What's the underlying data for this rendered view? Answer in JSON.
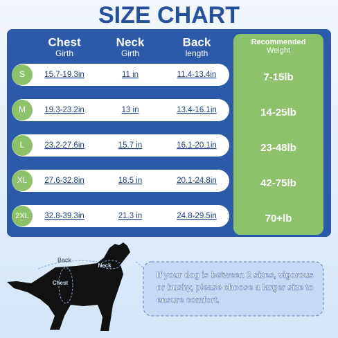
{
  "title": "SIZE CHART",
  "header": {
    "chest": "Chest",
    "chest_sub": "Girth",
    "neck": "Neck",
    "neck_sub": "Girth",
    "back": "Back",
    "back_sub": "length",
    "weight": "Recommended",
    "weight_sub": "Weight"
  },
  "table": {
    "rows": [
      [
        "S",
        "15.7-19.3in",
        "11 in",
        "11.4-13.4in",
        "7-15lb"
      ],
      [
        "M",
        "19.3-23.2in",
        "13 in",
        "13.4-16.1in",
        "14-25lb"
      ],
      [
        "L",
        "23.2-27.6in",
        "15.7 in",
        "16.1-20.1in",
        "23-48lb"
      ],
      [
        "XL",
        "27.6-32.8in",
        "18.5 in",
        "20.1-24.8in",
        "42-75lb"
      ],
      [
        "2XL",
        "32.8-39.3in",
        "21.3 in",
        "24.8-29.5in",
        "70+lb"
      ]
    ]
  },
  "diagram": {
    "back": "Back",
    "neck": "Neck",
    "chest": "Chest"
  },
  "note": [
    "If your dog is between 2 sizes, vigorous",
    "or bushy, please choose a larger size to",
    "ensure comfort."
  ]
}
